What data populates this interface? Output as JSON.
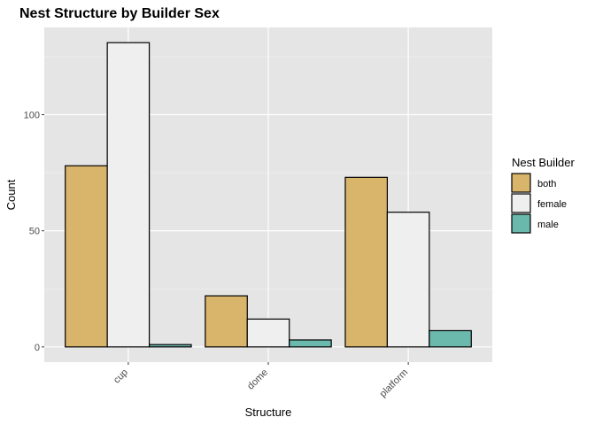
{
  "chart_data": {
    "type": "bar",
    "title": "Nest Structure by Builder Sex",
    "xlabel": "Structure",
    "ylabel": "Count",
    "categories": [
      "cup",
      "dome",
      "platform"
    ],
    "series": [
      {
        "name": "both",
        "values": [
          78,
          22,
          73
        ],
        "color": "#d9b46b"
      },
      {
        "name": "female",
        "values": [
          131,
          12,
          58
        ],
        "color": "#efefef"
      },
      {
        "name": "male",
        "values": [
          1,
          3,
          7
        ],
        "color": "#6bb8ad"
      }
    ],
    "ylim": [
      -6.55,
      137.55
    ],
    "yticks": [
      0,
      50,
      100
    ],
    "legend_title": "Nest Builder",
    "legend_position": "right",
    "grid": true,
    "panel_background": "#e5e5e5",
    "x_tick_label_rotation": "45"
  }
}
